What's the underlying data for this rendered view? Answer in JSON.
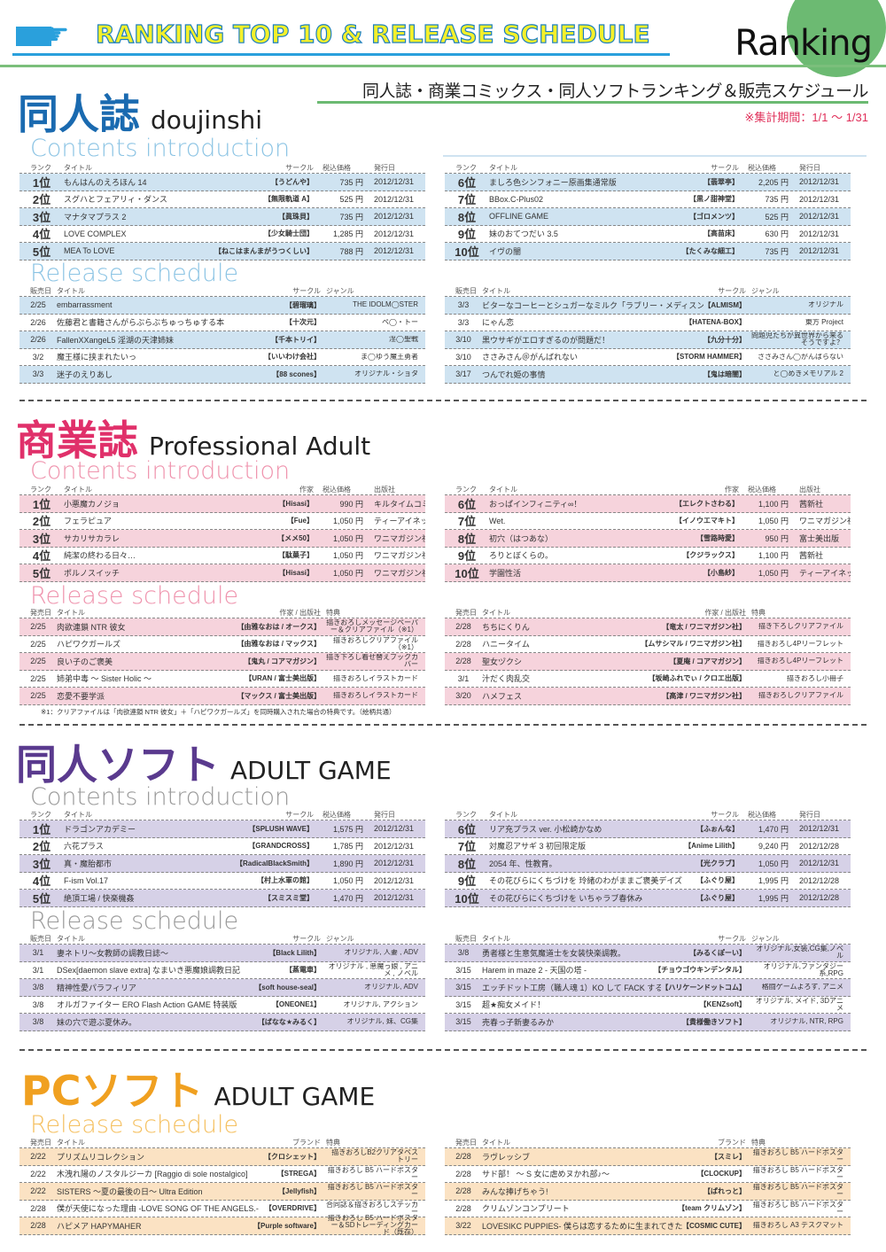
{
  "header": {
    "banner_title": "RANKING TOP 10 & RELEASE SCHEDULE",
    "logo_text": "Ranking",
    "subtitle": "同人誌・商業コミックス・同人ソフトランキング＆販売スケジュール",
    "period": "※集計期間：1/1 ～ 1/31"
  },
  "colors": {
    "doujinshi": "#1a6ab0",
    "commercial": "#e0306a",
    "soft": "#5a3a8e",
    "pc": "#f0a020",
    "doujinshi_row": "#cfe3f1",
    "commercial_row": "#f6d3dc",
    "soft_row": "#d6d1e7",
    "pc_row": "#fbe2c3",
    "header_accent": "#2aa0dc",
    "green": "#6cba72"
  },
  "sections": [
    {
      "title_jp": "同人誌",
      "title_en": "doujinshi",
      "contents_label": "Contents introduction",
      "release_label": "Release schedule",
      "ranking": {
        "headers": [
          "ランク",
          "タイトル",
          "サークル",
          "税込価格",
          "発行日"
        ],
        "left": [
          [
            "1位",
            "もんはんのえろほん 14",
            "【うどんや】",
            "735 円",
            "2012/12/31"
          ],
          [
            "2位",
            "スグハとフェアリィ・ダンス",
            "【無限軌道 A】",
            "525 円",
            "2012/12/31"
          ],
          [
            "3位",
            "マナタマプラス 2",
            "【眞珠貝】",
            "735 円",
            "2012/12/31"
          ],
          [
            "4位",
            "LOVE COMPLEX",
            "【少女騎士団】",
            "1,285 円",
            "2012/12/31"
          ],
          [
            "5位",
            "MEA To LOVE",
            "【ねこはまんまがうつくしい】",
            "788 円",
            "2012/12/31"
          ]
        ],
        "right": [
          [
            "6位",
            "ましろ色シンフォニー原画集通常版",
            "【翡翠亭】",
            "2,205 円",
            "2012/12/31"
          ],
          [
            "7位",
            "BBox.C-Plus02",
            "【黒ノ甜神堂】",
            "735 円",
            "2012/12/31"
          ],
          [
            "8位",
            "OFFLINE GAME",
            "【ゴロメンツ】",
            "525 円",
            "2012/12/31"
          ],
          [
            "9位",
            "妹のおてつだい 3.5",
            "【高苗床】",
            "630 円",
            "2012/12/31"
          ],
          [
            "10位",
            "イヴの闇",
            "【たくみな細工】",
            "735 円",
            "2012/12/31"
          ]
        ]
      },
      "release": {
        "headers": [
          "販売日",
          "タイトル",
          "サークル",
          "ジャンル"
        ],
        "left": [
          [
            "2/25",
            "embarrassment",
            "【碧瑠璃】",
            "THE IDOLM◯STER"
          ],
          [
            "2/26",
            "佐藤君と書籍さんがらぶらぶちゅっちゅする本",
            "【十次元】",
            "ペ◯・トー"
          ],
          [
            "2/26",
            "FallenXXangeL5 淫湖の天津姉妹",
            "【千本トリイ】",
            "淫◯聖戦"
          ],
          [
            "3/2",
            "魔王様に挟まれたいっ",
            "【いいわけ会社】",
            "ま◯ゆう魔王勇者"
          ],
          [
            "3/3",
            "迷子のえりあし",
            "【88 scones】",
            "オリジナル・ショタ"
          ]
        ],
        "right": [
          [
            "3/3",
            "ビターなコーヒーとシュガーなミルク「ラブリー・メディスン」",
            "【ALMISM】",
            "オリジナル"
          ],
          [
            "3/3",
            "にゃん恋",
            "【HATENA-BOX】",
            "東方 Project"
          ],
          [
            "3/10",
            "黒ウサギがエロすぎるのが問題だ！",
            "【九分十分】",
            "問題児たちが異世界から来るそうですよ？"
          ],
          [
            "3/10",
            "ささみさん＠がんばれない",
            "【STORM HAMMER】",
            "ささみさん◯がんばらない"
          ],
          [
            "3/17",
            "つんでれ姫の事情",
            "【鬼は暗闇】",
            "と◯めきメモリアル 2"
          ]
        ]
      }
    },
    {
      "title_jp": "商業誌",
      "title_en": "Professional Adult",
      "contents_label": "Contents introduction",
      "release_label": "Release schedule",
      "ranking": {
        "headers": [
          "ランク",
          "タイトル",
          "作家",
          "税込価格",
          "出版社"
        ],
        "left": [
          [
            "1位",
            "小悪魔カノジョ",
            "【Hisasi】",
            "990 円",
            "キルタイムコミュニケーション"
          ],
          [
            "2位",
            "フェラピュア",
            "【Fue】",
            "1,050 円",
            "ティーアイネット"
          ],
          [
            "3位",
            "サカリサカラレ",
            "【メメ50】",
            "1,050 円",
            "ワニマガジン社"
          ],
          [
            "4位",
            "純潔の終わる日々…",
            "【駄菓子】",
            "1,050 円",
            "ワニマガジン社"
          ],
          [
            "5位",
            "ポルノスイッチ",
            "【Hisasi】",
            "1,050 円",
            "ワニマガジン社"
          ]
        ],
        "right": [
          [
            "6位",
            "おっぱインフィニティ∞！",
            "【エレクトさわる】",
            "1,100 円",
            "茜新社"
          ],
          [
            "7位",
            "Wet.",
            "【イノウエマキト】",
            "1,050 円",
            "ワニマガジン社"
          ],
          [
            "8位",
            "初穴（はつあな）",
            "【雪路時愛】",
            "950 円",
            "富士美出版"
          ],
          [
            "9位",
            "ろりとぼくらの。",
            "【クジラックス】",
            "1,100 円",
            "茜新社"
          ],
          [
            "10位",
            "学園性活",
            "【小島紗】",
            "1,050 円",
            "ティーアイネット"
          ]
        ]
      },
      "release": {
        "headers": [
          "発売日",
          "タイトル",
          "作家 / 出版社",
          "特典"
        ],
        "left": [
          [
            "2/25",
            "肉欲連鎖 NTR 彼女",
            "【由雅なおは / オークス】",
            "描きおろしメッセージペーパー＆クリアファイル（※1）"
          ],
          [
            "2/25",
            "ハピワクガールズ",
            "【由雅なおは / マックス】",
            "描きおろしクリアファイル（※1）"
          ],
          [
            "2/25",
            "良い子のご褒美",
            "【鬼丸 / コアマガジン】",
            "描き下ろし着せ替えブックカバー"
          ],
          [
            "2/25",
            "姉弟中毒 ～ Sister Holic ～",
            "【URAN / 富士美出版】",
            "描きおろしイラストカード"
          ],
          [
            "2/25",
            "恋愛不要学派",
            "【マックス / 富士美出版】",
            "描きおろしイラストカード"
          ]
        ],
        "right": [
          [
            "2/28",
            "ちちにくりん",
            "【竜太 / ワニマガジン社】",
            "描き下ろしクリアファイル"
          ],
          [
            "2/28",
            "ハニータイム",
            "【ムサシマル / ワニマガジン社】",
            "描きおろし4Pリーフレット"
          ],
          [
            "2/28",
            "聖女ヅクシ",
            "【夏庵 / コアマガジン】",
            "描きおろし4Pリーフレット"
          ],
          [
            "3/1",
            "汁だく肉乱交",
            "【坂崎ふれでぃ / クロエ出版】",
            "描きおろし小冊子"
          ],
          [
            "3/20",
            "ハメフェス",
            "【高津 / ワニマガジン社】",
            "描きおろしクリアファイル"
          ]
        ],
        "note": "※1：クリアファイルは「肉欲連鎖 NTR 彼女」＋「ハピワクガールズ」を同時購入された場合の特典です。（絵柄共通）"
      }
    },
    {
      "title_jp": "同人ソフト",
      "title_en": "ADULT GAME",
      "contents_label": "Contents introduction",
      "release_label": "Release schedule",
      "ranking": {
        "headers": [
          "ランク",
          "タイトル",
          "サークル",
          "税込価格",
          "発行日"
        ],
        "left": [
          [
            "1位",
            "ドラゴンアカデミー",
            "【SPLUSH WAVE】",
            "1,575 円",
            "2012/12/31"
          ],
          [
            "2位",
            "六花プラス",
            "【GRANDCROSS】",
            "1,785 円",
            "2012/12/31"
          ],
          [
            "3位",
            "真・魔胎都市",
            "【RadicalBlackSmith】",
            "1,890 円",
            "2012/12/31"
          ],
          [
            "4位",
            "F-ism Vol.17",
            "【村上水軍の館】",
            "1,050 円",
            "2012/12/31"
          ],
          [
            "5位",
            "絶頂工場 / 快楽機姦",
            "【スミスミ堂】",
            "1,470 円",
            "2012/12/31"
          ]
        ],
        "right": [
          [
            "6位",
            "リア充プラス ver. 小松崎かなめ",
            "【ふぉんな】",
            "1,470 円",
            "2012/12/31"
          ],
          [
            "7位",
            "対魔忍アサギ 3 初回限定版",
            "【Anime Lilith】",
            "9,240 円",
            "2012/12/28"
          ],
          [
            "8位",
            "2054 年、性教育。",
            "【光クラブ】",
            "1,050 円",
            "2012/12/31"
          ],
          [
            "9位",
            "その花びらにくちづけを 玲緒のわがままご褒美デイズ",
            "【ふぐり屋】",
            "1,995 円",
            "2012/12/28"
          ],
          [
            "10位",
            "その花びらにくちづけを いちゃラブ春休み",
            "【ふぐり屋】",
            "1,995 円",
            "2012/12/28"
          ]
        ]
      },
      "release": {
        "headers": [
          "販売日",
          "タイトル",
          "サークル",
          "ジャンル"
        ],
        "left": [
          [
            "3/1",
            "妻ネトリ～女教師の調教日誌～",
            "【Black Lilith】",
            "オリジナル, 人妻 , ADV"
          ],
          [
            "3/1",
            "DSex[daemon slave extra] なまいき悪魔娘調教日記",
            "【蒸電車】",
            "オリジナル , 悪魔っ娘 , アニメ , ノベル"
          ],
          [
            "3/8",
            "精神性愛パラフィリア",
            "【soft house-seal】",
            "オリジナル, ADV"
          ],
          [
            "3/8",
            "オルガファイター ERO Flash Action GAME 特装版",
            "【ONEONE1】",
            "オリジナル, アクション"
          ],
          [
            "3/8",
            "妹の穴で遊ぶ夏休み。",
            "【ばなな★みるく】",
            "オリジナル, 妹、CG集"
          ]
        ],
        "right": [
          [
            "3/8",
            "勇者様と生意気魔道士を女装快楽調教。",
            "【みるくぽーい】",
            "オリジナル,女装,CG集,ノベル"
          ],
          [
            "3/15",
            "Harem in maze 2 - 天国の塔 -",
            "【チョウゴウキンデンタル】",
            "オリジナル,ファンタジー系,RPG"
          ],
          [
            "3/15",
            "エッチドット工房（職人魂 1）KO して FACK する！",
            "【ハリケーンドットコム】",
            "格闘ゲームよろず, アニメ"
          ],
          [
            "3/15",
            "超★痴女メイド！",
            "【KENZsoft】",
            "オリジナル, メイド, 3Dアニメ"
          ],
          [
            "3/15",
            "売春っ子新妻るみか",
            "【貴様働きソフト】",
            "オリジナル, NTR, RPG"
          ]
        ]
      }
    },
    {
      "title_jp": "PCソフト",
      "title_en": "ADULT GAME",
      "release_label": "Release schedule",
      "release": {
        "headers": [
          "発売日",
          "タイトル",
          "ブランド",
          "特典"
        ],
        "left": [
          [
            "2/22",
            "プリズムリコレクション",
            "【クロシェット】",
            "描きおろしB2クリアタペストリー"
          ],
          [
            "2/22",
            "木洩れ陽のノスタルジーカ [Raggio di sole nostalgico]",
            "【STREGA】",
            "描きおろし B5 ハードポスター"
          ],
          [
            "2/22",
            "SISTERS ～夏の最後の日～ Ultra Edition",
            "【Jellyfish】",
            "描きおろし B5 ハードポスター"
          ],
          [
            "2/28",
            "僕が天使になった理由 -LOVE SONG OF THE ANGELS.-",
            "【OVERDRIVE】",
            "合同誌＆描きおろしステッカー"
          ],
          [
            "2/28",
            "ハピメア HAPYMAHER",
            "【Purple software】",
            "描きおろし B5 ハードポスター＆SDトレーディングカード（既存）"
          ]
        ],
        "right": [
          [
            "2/28",
            "ラヴレッシブ",
            "【スミレ】",
            "描きおろし B5 ハードポスター"
          ],
          [
            "2/28",
            "サド部！ ～ S 女に虐めヌかれ部♪～",
            "【CLOCKUP】",
            "描きおろし B5 ハードポスター"
          ],
          [
            "2/28",
            "みんな捧げちゃう!",
            "【ぱれっと】",
            "描きおろし B5 ハードポスター"
          ],
          [
            "2/28",
            "クリムゾンコンプリート",
            "【team クリムゾン】",
            "描きおろし B5 ハードポスター"
          ],
          [
            "3/22",
            "LOVESIKC PUPPIES- 僕らは恋するために生まれてきた -",
            "【COSMIC CUTE】",
            "描きおろし A3 デスクマット"
          ]
        ]
      }
    }
  ]
}
